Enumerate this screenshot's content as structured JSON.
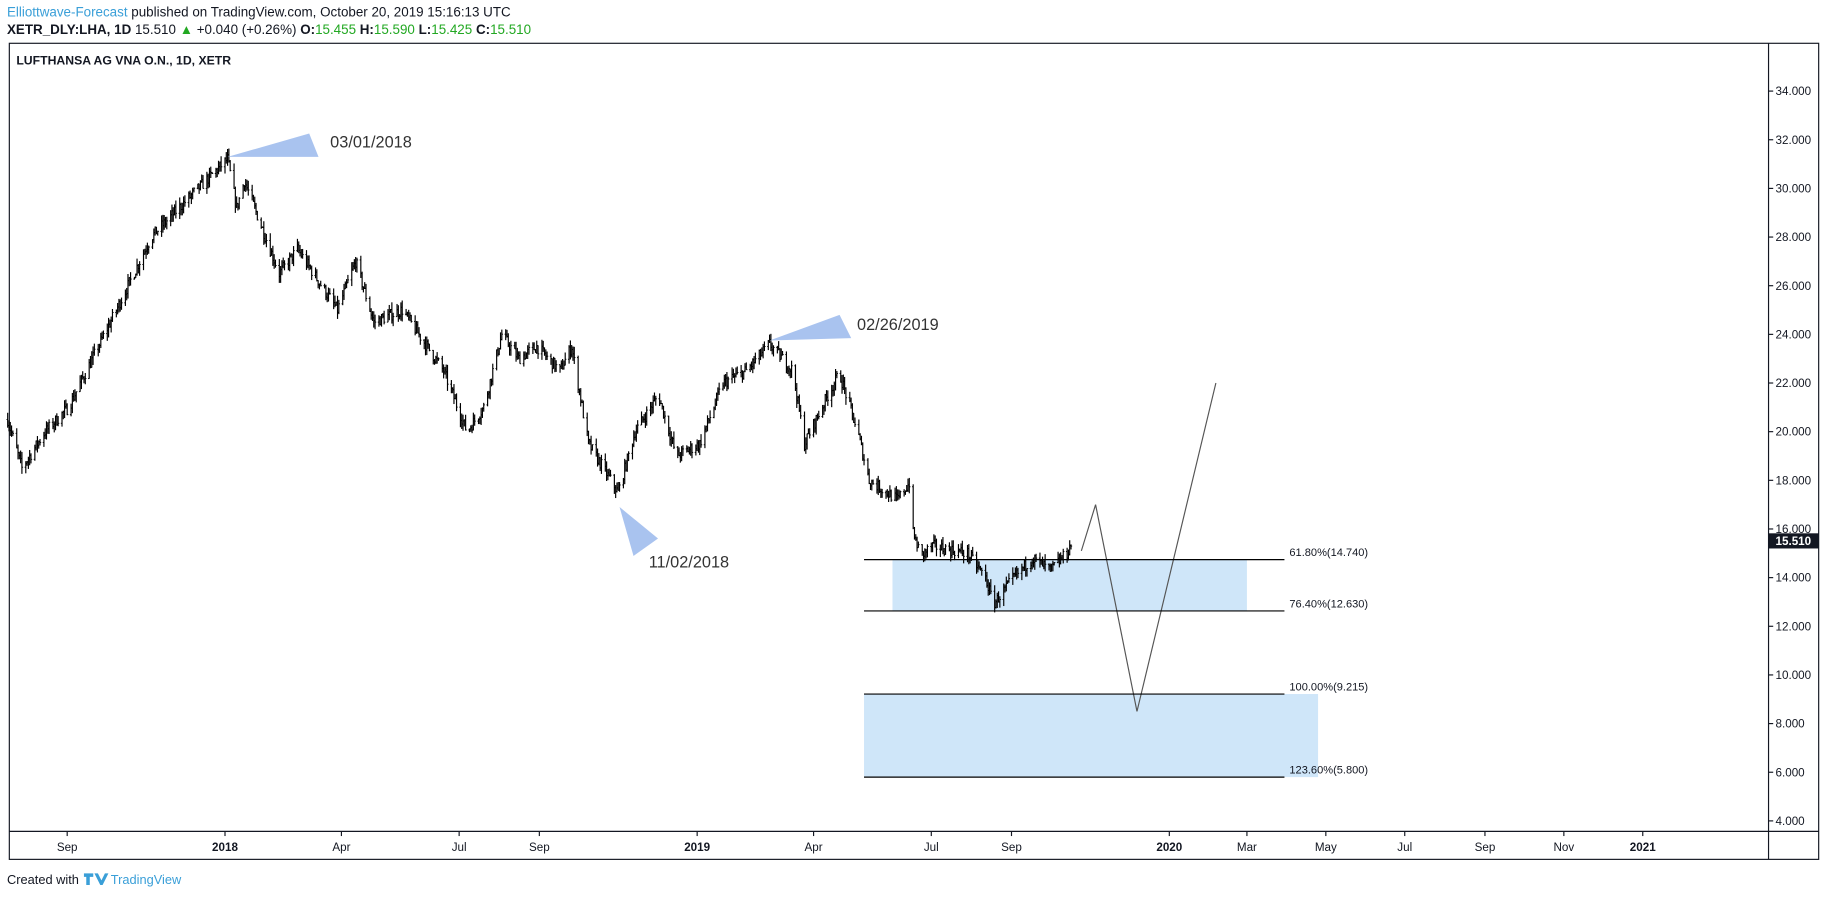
{
  "header": {
    "author": "Elliottwave-Forecast",
    "published": "published on TradingView.com, October 20, 2019 15:16:13 UTC",
    "symbol": "XETR_DLY:LHA, 1D",
    "last": "15.510",
    "change": "+0.040 (+0.26%)",
    "o_label": "O:",
    "o": "15.455",
    "h_label": "H:",
    "h": "15.590",
    "l_label": "L:",
    "l": "15.425",
    "c_label": "C:",
    "c": "15.510"
  },
  "footer": {
    "created_with": "Created with",
    "brand": "TradingView"
  },
  "colors": {
    "accent": "#3a9fd8",
    "up": "#22a822",
    "zone": "#cfe6f9",
    "marker": "#a9c3ef"
  },
  "chart_data": {
    "type": "bar",
    "title": "LUFTHANSA AG VNA O.N., 1D, XETR",
    "ylim": [
      3.2,
      36
    ],
    "yticks": [
      "4.000",
      "6.000",
      "8.000",
      "10.000",
      "12.000",
      "14.000",
      "16.000",
      "18.000",
      "20.000",
      "22.000",
      "24.000",
      "26.000",
      "28.000",
      "30.000",
      "32.000",
      "34.000"
    ],
    "current_price_label": "15.510",
    "current_price": 15.51,
    "xticks": [
      {
        "label": "Sep",
        "date": "2017-09-01"
      },
      {
        "label": "2018",
        "date": "2018-01-01"
      },
      {
        "label": "Apr",
        "date": "2018-04-01"
      },
      {
        "label": "Jul",
        "date": "2018-07-01"
      },
      {
        "label": "Sep",
        "date": "2018-09-01"
      },
      {
        "label": "2019",
        "date": "2019-01-01"
      },
      {
        "label": "Apr",
        "date": "2019-04-01"
      },
      {
        "label": "Jul",
        "date": "2019-07-01"
      },
      {
        "label": "Sep",
        "date": "2019-09-01"
      },
      {
        "label": "2020",
        "date": "2020-01-01"
      },
      {
        "label": "Mar",
        "date": "2020-03-01"
      },
      {
        "label": "May",
        "date": "2020-05-01"
      },
      {
        "label": "Jul",
        "date": "2020-07-01"
      },
      {
        "label": "Sep",
        "date": "2020-09-01"
      },
      {
        "label": "Nov",
        "date": "2020-11-01"
      },
      {
        "label": "2021",
        "date": "2021-01-01"
      }
    ],
    "price_path": [
      [
        "2017-07-17",
        20.5
      ],
      [
        "2017-07-28",
        18.5
      ],
      [
        "2017-08-15",
        20
      ],
      [
        "2017-09-02",
        21
      ],
      [
        "2017-10-09",
        25
      ],
      [
        "2017-11-05",
        28
      ],
      [
        "2017-12-02",
        29.5
      ],
      [
        "2018-01-03",
        31.2
      ],
      [
        "2018-01-10",
        29.2
      ],
      [
        "2018-01-16",
        30.3
      ],
      [
        "2018-02-12",
        26.5
      ],
      [
        "2018-02-26",
        27.5
      ],
      [
        "2018-03-29",
        25
      ],
      [
        "2018-04-12",
        27
      ],
      [
        "2018-04-26",
        24.5
      ],
      [
        "2018-05-18",
        25
      ],
      [
        "2018-06-19",
        22.5
      ],
      [
        "2018-07-07",
        20
      ],
      [
        "2018-07-20",
        21
      ],
      [
        "2018-08-03",
        24
      ],
      [
        "2018-08-16",
        23
      ],
      [
        "2018-08-30",
        23.5
      ],
      [
        "2018-09-17",
        22.5
      ],
      [
        "2018-09-26",
        23.5
      ],
      [
        "2018-10-09",
        19.5
      ],
      [
        "2018-11-01",
        17.5
      ],
      [
        "2018-11-14",
        20
      ],
      [
        "2018-12-02",
        21.5
      ],
      [
        "2018-12-16",
        19
      ],
      [
        "2019-01-03",
        19.5
      ],
      [
        "2019-01-21",
        22
      ],
      [
        "2019-02-08",
        22.5
      ],
      [
        "2019-02-26",
        23.6
      ],
      [
        "2019-03-16",
        22.5
      ],
      [
        "2019-03-25",
        19.5
      ],
      [
        "2019-04-12",
        21.5
      ],
      [
        "2019-04-21",
        22.4
      ],
      [
        "2019-05-05",
        20
      ],
      [
        "2019-05-14",
        18
      ],
      [
        "2019-06-05",
        17.2
      ],
      [
        "2019-06-14",
        17.9
      ],
      [
        "2019-06-17",
        15.8
      ],
      [
        "2019-06-23",
        14.9
      ],
      [
        "2019-07-02",
        15.3
      ],
      [
        "2019-07-29",
        15
      ],
      [
        "2019-08-12",
        14
      ],
      [
        "2019-08-18",
        12.9
      ],
      [
        "2019-09-03",
        14
      ],
      [
        "2019-09-17",
        14.8
      ],
      [
        "2019-10-01",
        14.3
      ],
      [
        "2019-10-14",
        15
      ],
      [
        "2019-10-18",
        15.51
      ]
    ],
    "projection": [
      [
        "2019-10-25",
        15.1
      ],
      [
        "2019-11-05",
        17.0
      ],
      [
        "2019-12-07",
        8.5
      ],
      [
        "2020-02-06",
        22.0
      ]
    ],
    "fib_levels": [
      {
        "label": "61.80%(14.740)",
        "value": 14.74
      },
      {
        "label": "76.40%(12.630)",
        "value": 12.63
      },
      {
        "label": "100.00%(9.215)",
        "value": 9.215
      },
      {
        "label": "123.60%(5.800)",
        "value": 5.8
      }
    ],
    "zones": [
      {
        "from": 14.74,
        "to": 12.63,
        "start": "2019-06-01",
        "end": "2020-03-01"
      },
      {
        "from": 9.215,
        "to": 5.8,
        "start": "2019-05-10",
        "end": "2020-04-25"
      }
    ],
    "annotations": [
      {
        "label": "03/01/2018",
        "date": "2018-01-03",
        "price": 31.2
      },
      {
        "label": "11/02/2018",
        "date": "2018-11-02",
        "price": 17.0
      },
      {
        "label": "02/26/2019",
        "date": "2019-02-26",
        "price": 23.7
      }
    ]
  }
}
